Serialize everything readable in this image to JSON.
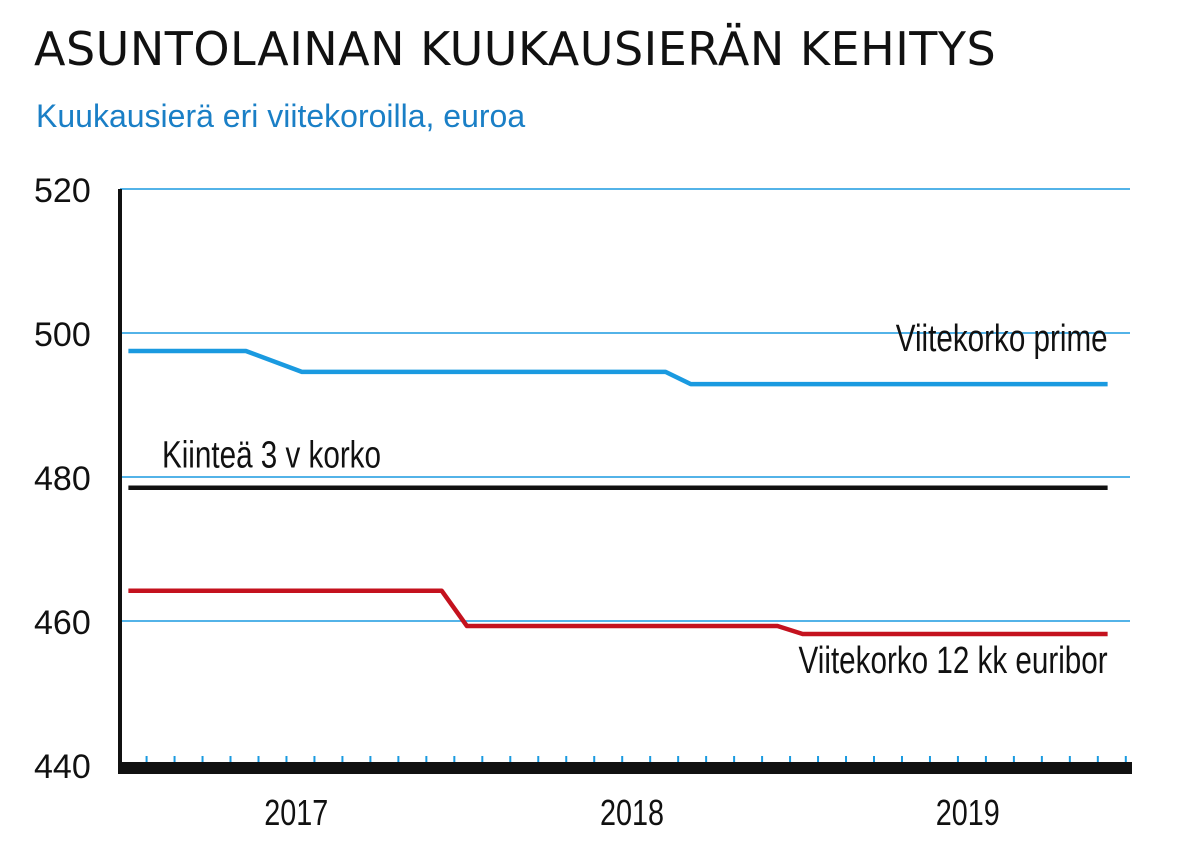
{
  "chart_data": {
    "type": "line",
    "title": "ASUNTOLAINAN KUUKAUSIERÄN KEHITYS",
    "subtitle": "Kuukausierä eri viitekoroilla, euroa",
    "xlabel": "",
    "ylabel": "",
    "x_unit": "month index (0 = Jan 2017)",
    "xlim": [
      -0.3,
      35.8
    ],
    "ylim": [
      440,
      520
    ],
    "yticks": [
      440,
      460,
      480,
      500,
      520
    ],
    "ytick_labels": [
      "440",
      "460",
      "480",
      "500",
      "520"
    ],
    "xtick_labels": [
      {
        "label": "2017",
        "center": 6
      },
      {
        "label": "2018",
        "center": 18
      },
      {
        "label": "2019",
        "center": 30
      }
    ],
    "grid": true,
    "series": [
      {
        "name": "Viitekorko prime",
        "color": "#1a9ae0",
        "x": [
          0,
          4.2,
          6.2,
          19.2,
          20.1,
          35
        ],
        "y": [
          497.5,
          497.5,
          494.6,
          494.6,
          492.9,
          492.9
        ],
        "label_at": [
          35,
          497.5
        ],
        "label_anchor": "end"
      },
      {
        "name": "Kiinteä 3 v korko",
        "color": "#111111",
        "x": [
          0,
          35
        ],
        "y": [
          478.5,
          478.5
        ],
        "label_at": [
          1.2,
          481.3
        ],
        "label_anchor": "start"
      },
      {
        "name": "Viitekorko 12 kk euribor",
        "color": "#c4121e",
        "x": [
          0,
          11.2,
          12.1,
          23.2,
          24.1,
          35
        ],
        "y": [
          464.2,
          464.2,
          459.3,
          459.3,
          458.2,
          458.2
        ],
        "label_at": [
          35,
          452.8
        ],
        "label_anchor": "end"
      }
    ]
  }
}
